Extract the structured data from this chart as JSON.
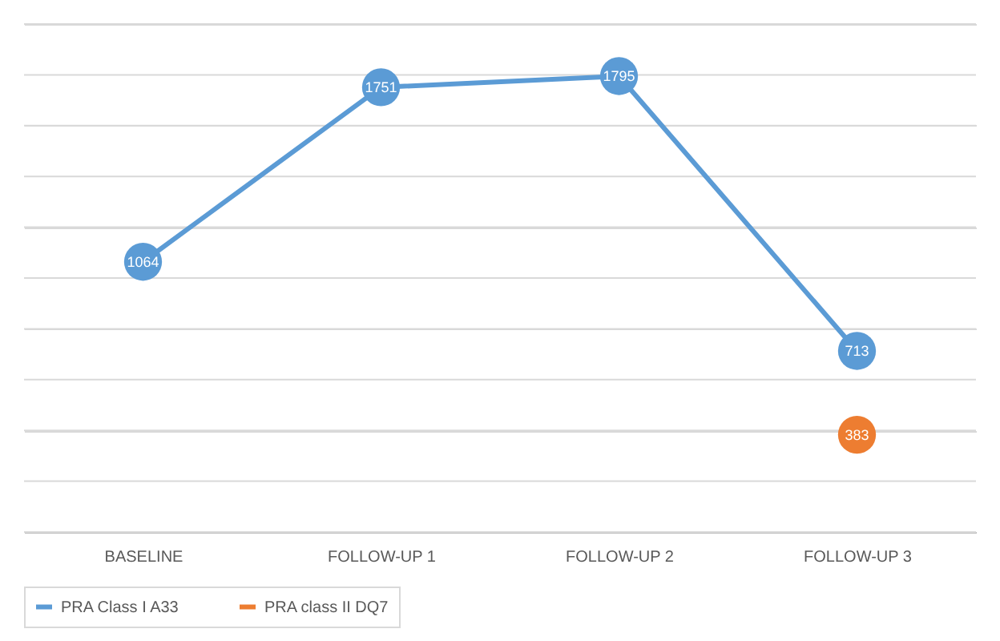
{
  "chart_data": {
    "type": "line",
    "categories": [
      "BASELINE",
      "FOLLOW-UP 1",
      "FOLLOW-UP 2",
      "FOLLOW-UP 3"
    ],
    "series": [
      {
        "name": "PRA Class I A33",
        "color": "#5b9bd5",
        "values": [
          1064,
          1751,
          1795,
          713
        ]
      },
      {
        "name": "PRA class II DQ7",
        "color": "#ed7d31",
        "values": [
          null,
          null,
          null,
          383
        ]
      }
    ],
    "ylim": [
      0,
      2000
    ],
    "yticks": [
      {
        "value": 0,
        "label": null
      },
      {
        "value": 200,
        "label": null
      },
      {
        "value": 400,
        "label": null
      },
      {
        "value": 600,
        "label": null
      },
      {
        "value": 800,
        "label": null
      },
      {
        "value": 1000,
        "label": null
      },
      {
        "value": 1200,
        "label": null
      },
      {
        "value": 1400,
        "label": null
      },
      {
        "value": 1600,
        "label": null
      },
      {
        "value": 1800,
        "label": null
      },
      {
        "value": 2000,
        "label": null
      }
    ],
    "tick_labels": "x",
    "grid": "y",
    "legend": "bottom",
    "marker": "circle",
    "line_style": "solid",
    "data_labels": true
  }
}
